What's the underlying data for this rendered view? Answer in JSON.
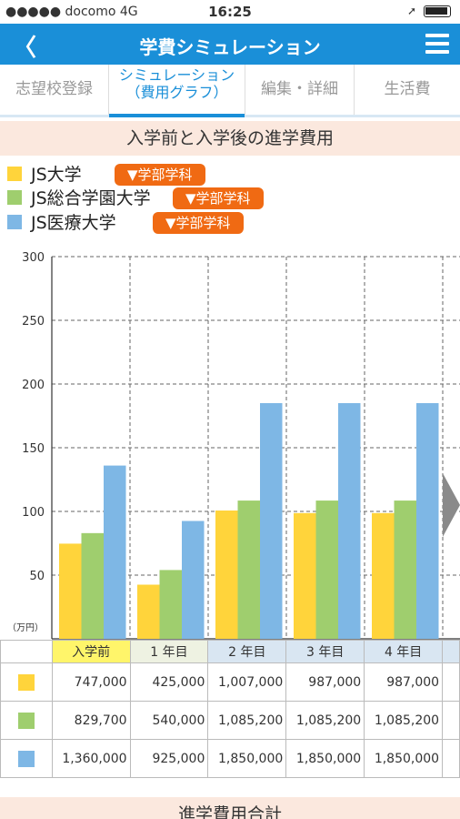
{
  "status_bar": {
    "carrier": "●●●●● docomo  4G",
    "time": "16:25"
  },
  "nav": {
    "back_label": "〈",
    "title": "学費シミュレーション"
  },
  "tabs": [
    {
      "label": "志望校登録"
    },
    {
      "label_line1": "シミュレーション",
      "label_line2": "（費用グラフ）"
    },
    {
      "label": "編集・詳細"
    },
    {
      "label": "生活費"
    }
  ],
  "section_title": "入学前と入学後の進学費用",
  "legend": [
    {
      "name": "JS大学",
      "button": "▼学部学科",
      "color": "#ffd43b"
    },
    {
      "name": "JS総合学園大学",
      "button": "▼学部学科",
      "color": "#9fce6e"
    },
    {
      "name": "JS医療大学",
      "button": "▼学部学科",
      "color": "#7eb7e5"
    }
  ],
  "colors": {
    "accent": "#1a8fd8",
    "button": "#f06a13",
    "section_bg": "#fbe8de"
  },
  "chart_data": {
    "type": "bar",
    "categories": [
      "入学前",
      "1年目",
      "2年目",
      "3年目",
      "4年目"
    ],
    "series": [
      {
        "name": "JS大学",
        "values": [
          74.7,
          42.5,
          100.7,
          98.7,
          98.7
        ]
      },
      {
        "name": "JS総合学園大学",
        "values": [
          82.97,
          54.0,
          108.52,
          108.52,
          108.52
        ]
      },
      {
        "name": "JS医療大学",
        "values": [
          136.0,
          92.5,
          185.0,
          185.0,
          185.0
        ]
      }
    ],
    "yticks": [
      "300",
      "250",
      "200",
      "150",
      "100",
      "50"
    ],
    "ylim": [
      0,
      300
    ],
    "unit_label": "（万円）",
    "grid": true
  },
  "table": {
    "headers": [
      "入学前",
      "1 年目",
      "2 年目",
      "3 年目",
      "4 年目"
    ],
    "rows": [
      [
        "747,000",
        "425,000",
        "1,007,000",
        "987,000",
        "987,000"
      ],
      [
        "829,700",
        "540,000",
        "1,085,200",
        "1,085,200",
        "1,085,200"
      ],
      [
        "1,360,000",
        "925,000",
        "1,850,000",
        "1,850,000",
        "1,850,000"
      ]
    ]
  },
  "footer_title": "進学費用合計"
}
